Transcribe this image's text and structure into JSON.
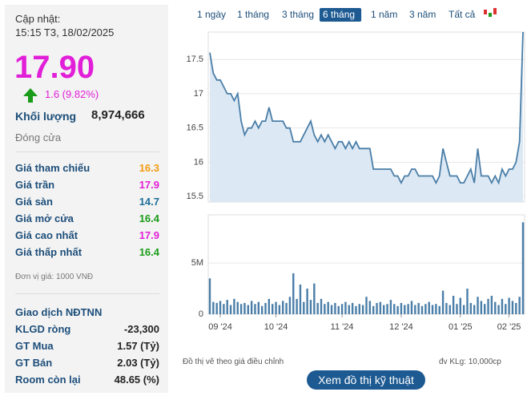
{
  "updated_label": "Cập nhật:",
  "updated_time": "15:15 T3, 18/02/2025",
  "price": "17.90",
  "change": "1.6 (9.82%)",
  "volume_label": "Khối lượng",
  "volume": "8,974,666",
  "status": "Đóng cửa",
  "prices": [
    {
      "label": "Giá tham chiếu",
      "value": "16.3",
      "color": "#f39c12"
    },
    {
      "label": "Giá trần",
      "value": "17.9",
      "color": "#e21fd8"
    },
    {
      "label": "Giá sàn",
      "value": "14.7",
      "color": "#1d6f9a"
    },
    {
      "label": "Giá mở cửa",
      "value": "16.4",
      "color": "#1a9c1a"
    },
    {
      "label": "Giá cao nhất",
      "value": "17.9",
      "color": "#e21fd8"
    },
    {
      "label": "Giá thấp nhất",
      "value": "16.4",
      "color": "#1a9c1a"
    }
  ],
  "unit_note": "Đơn vị giá: 1000 VNĐ",
  "foreign_title": "Giao dịch NĐTNN",
  "foreign": [
    {
      "label": "KLGD ròng",
      "value": "-23,300"
    },
    {
      "label": "GT Mua",
      "value": "1.57 (Tỷ)"
    },
    {
      "label": "GT Bán",
      "value": "2.03 (Tỷ)"
    },
    {
      "label": "Room còn lại",
      "value": "48.65 (%)"
    }
  ],
  "periods": [
    "1 ngày",
    "1 tháng",
    "3 tháng",
    "6 tháng",
    "1 năm",
    "3 năm",
    "Tất cả"
  ],
  "active_period": 3,
  "footnote_left": "Đồ thị vẽ theo giá điều chỉnh",
  "footnote_right": "đv KLg: 10,000cp",
  "button": "Xem đồ thị kỹ thuật",
  "chart_data": [
    {
      "type": "area",
      "color": "#4a7ea8",
      "values": [
        17.6,
        17.3,
        17.2,
        17.2,
        17.1,
        17.0,
        17.0,
        16.9,
        17.0,
        16.6,
        16.4,
        16.5,
        16.5,
        16.6,
        16.5,
        16.6,
        16.6,
        16.8,
        16.6,
        16.6,
        16.6,
        16.6,
        16.5,
        16.5,
        16.3,
        16.3,
        16.3,
        16.4,
        16.5,
        16.6,
        16.4,
        16.3,
        16.4,
        16.3,
        16.4,
        16.3,
        16.2,
        16.3,
        16.3,
        16.2,
        16.3,
        16.2,
        16.3,
        16.2,
        16.2,
        16.2,
        16.2,
        15.9,
        15.9,
        15.9,
        15.9,
        15.9,
        15.9,
        15.8,
        15.8,
        15.7,
        15.8,
        15.8,
        15.9,
        15.9,
        15.8,
        15.8,
        15.8,
        15.8,
        15.8,
        15.7,
        15.8,
        16.2,
        16.0,
        15.8,
        15.8,
        15.8,
        15.7,
        15.7,
        15.8,
        15.9,
        15.7,
        16.2,
        15.8,
        15.8,
        15.8,
        15.7,
        15.8,
        15.7,
        15.9,
        15.8,
        15.9,
        15.9,
        16.0,
        16.3,
        17.9
      ],
      "ylim": [
        15.42,
        17.9
      ],
      "yticks": [
        15.5,
        16,
        16.5,
        17,
        17.5
      ],
      "grid": true
    },
    {
      "type": "bar",
      "color": "#4a7ea8",
      "values": [
        3500000,
        1200000,
        1100000,
        1300000,
        1000000,
        1400000,
        900000,
        1500000,
        1200000,
        1000000,
        1100000,
        900000,
        1300000,
        1000000,
        1200000,
        800000,
        1100000,
        1500000,
        1000000,
        1200000,
        900000,
        1300000,
        1100000,
        1700000,
        4000000,
        1500000,
        2900000,
        1200000,
        2500000,
        1400000,
        3000000,
        1100000,
        1500000,
        1000000,
        1200000,
        900000,
        1100000,
        800000,
        1000000,
        1200000,
        900000,
        1100000,
        800000,
        1000000,
        900000,
        1700000,
        1300000,
        800000,
        1100000,
        1200000,
        900000,
        1000000,
        1400000,
        1000000,
        800000,
        1100000,
        900000,
        1000000,
        1300000,
        900000,
        1100000,
        800000,
        1000000,
        1200000,
        900000,
        1000000,
        800000,
        2300000,
        1100000,
        900000,
        1800000,
        1000000,
        1600000,
        900000,
        2500000,
        1100000,
        900000,
        1700000,
        1300000,
        1000000,
        1500000,
        1800000,
        1200000,
        900000,
        1500000,
        1000000,
        1600000,
        1300000,
        1100000,
        1700000,
        8974666
      ],
      "ylim": [
        0,
        9700000
      ],
      "yticks": [
        0,
        {
          "value": 5000000,
          "label": "5M"
        }
      ],
      "xticks": [
        {
          "value": 3,
          "label": "09 '24"
        },
        {
          "value": 19,
          "label": "10 '24"
        },
        {
          "value": 38,
          "label": "11 '24"
        },
        {
          "value": 55,
          "label": "12 '24"
        },
        {
          "value": 72,
          "label": "01 '25"
        },
        {
          "value": 86,
          "label": "02 '25"
        }
      ]
    }
  ]
}
